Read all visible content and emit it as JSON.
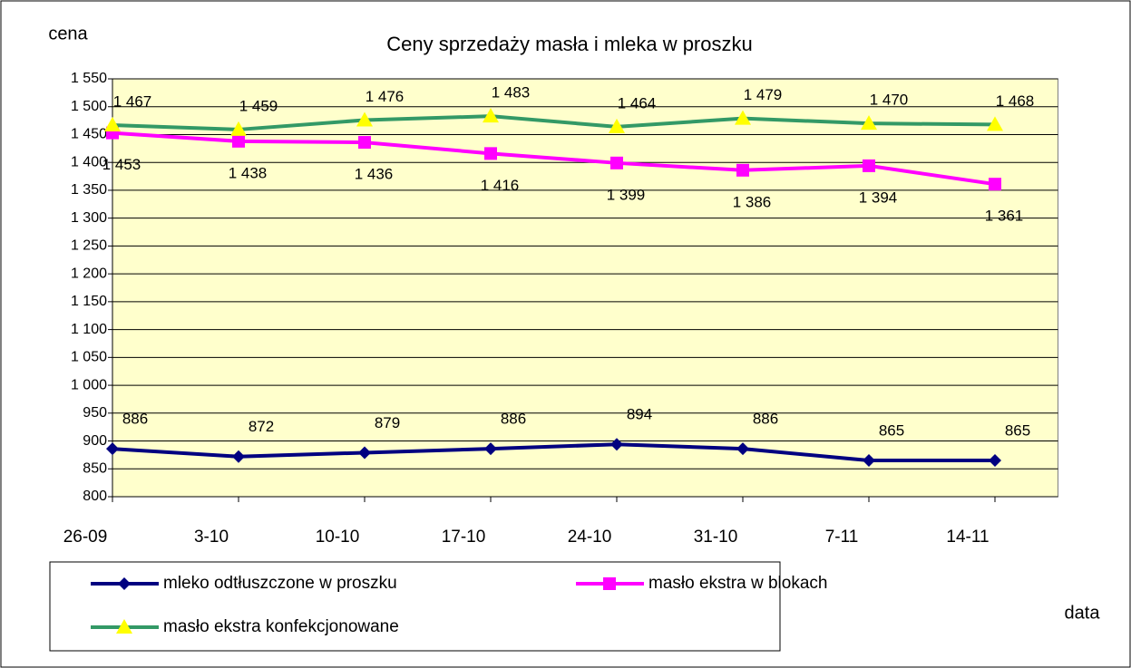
{
  "chart_data": {
    "type": "line",
    "title": "Ceny sprzedaży masła i mleka w proszku",
    "y_label": "cena",
    "x_label": "data",
    "categories": [
      "26-09",
      "3-10",
      "10-10",
      "17-10",
      "24-10",
      "31-10",
      "7-11",
      "14-11"
    ],
    "series": [
      {
        "name": "mleko odtłuszczone w proszku",
        "color": "#000080",
        "marker": "diamond",
        "values": [
          886,
          872,
          879,
          886,
          894,
          886,
          865,
          865
        ],
        "value_labels": [
          "886",
          "872",
          "879",
          "886",
          "894",
          "886",
          "865",
          "865"
        ]
      },
      {
        "name": "masło ekstra w blokach",
        "color": "#ff00ff",
        "marker": "square",
        "values": [
          1453,
          1438,
          1436,
          1416,
          1399,
          1386,
          1394,
          1361
        ],
        "value_labels": [
          "1 453",
          "1 438",
          "1 436",
          "1 416",
          "1 399",
          "1 386",
          "1 394",
          "1 361"
        ]
      },
      {
        "name": "masło ekstra konfekcjonowane",
        "color": "#339966",
        "marker": "triangle",
        "marker_color": "#ffff00",
        "values": [
          1467,
          1459,
          1476,
          1483,
          1464,
          1479,
          1470,
          1468
        ],
        "value_labels": [
          "1 467",
          "1 459",
          "1 476",
          "1 483",
          "1 464",
          "1 479",
          "1 470",
          "1 468"
        ]
      }
    ],
    "ylim": [
      800,
      1550
    ],
    "yticks": [
      {
        "value": 800,
        "label": "800"
      },
      {
        "value": 850,
        "label": "850"
      },
      {
        "value": 900,
        "label": "900"
      },
      {
        "value": 950,
        "label": "950"
      },
      {
        "value": 1000,
        "label": "1 000"
      },
      {
        "value": 1050,
        "label": "1 050"
      },
      {
        "value": 1100,
        "label": "1 100"
      },
      {
        "value": 1150,
        "label": "1 150"
      },
      {
        "value": 1200,
        "label": "1 200"
      },
      {
        "value": 1250,
        "label": "1 250"
      },
      {
        "value": 1300,
        "label": "1 300"
      },
      {
        "value": 1350,
        "label": "1 350"
      },
      {
        "value": 1400,
        "label": "1 400"
      },
      {
        "value": 1450,
        "label": "1 450"
      },
      {
        "value": 1500,
        "label": "1 500"
      },
      {
        "value": 1550,
        "label": "1 550"
      }
    ],
    "grid": true,
    "plot_background": "#ffffcc"
  }
}
